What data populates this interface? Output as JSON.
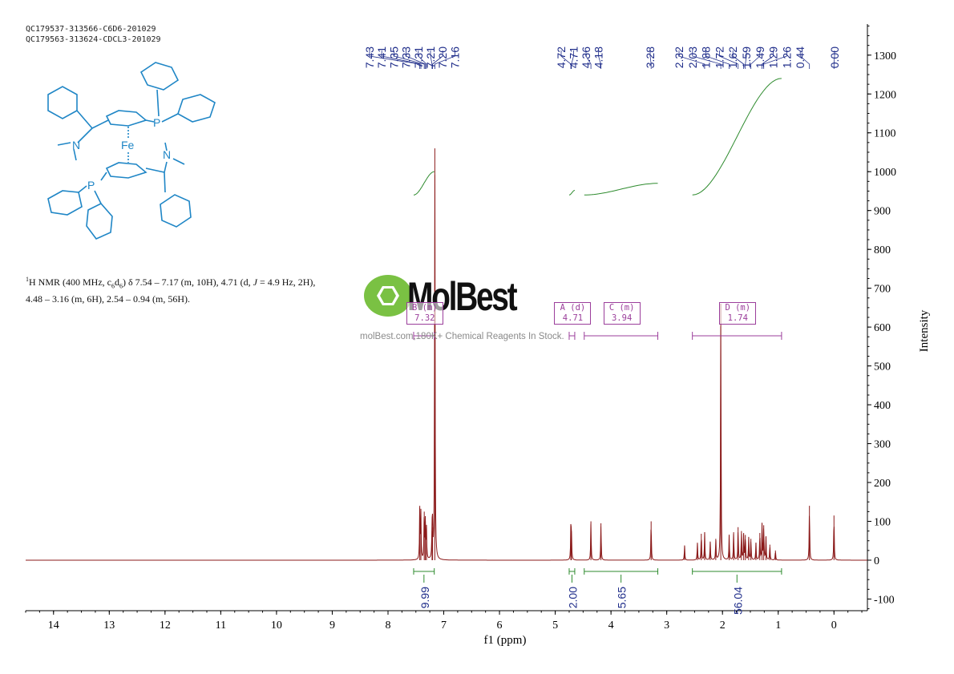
{
  "sample_codes": [
    "QC179537-313566-C6D6-201029",
    "QC179563-313624-CDCL3-201029"
  ],
  "description": {
    "nucleus": "1",
    "nmr": "H NMR (400 MHz, c",
    "solvent_sub_1": "6",
    "solvent_mid": "d",
    "solvent_sub_2": "6",
    "rest_1": ") δ 7.54 – 7.17 (m, 10H), 4.71 (d, ",
    "j": "J",
    "rest_2": " = 4.9 Hz, 2H),",
    "line2": "4.48 – 3.16 (m, 6H), 2.54 – 0.94 (m, 56H)."
  },
  "structure": {
    "labels": {
      "fe": "Fe",
      "p": "P",
      "n": "N"
    }
  },
  "watermark": {
    "name": "MolBest",
    "url": "molBest.com,180K+ Chemical Reagents In Stock."
  },
  "colors": {
    "spectrum": "#8b1a1a",
    "integral": "#2e8b2e",
    "peaks": "#1f2d8a",
    "multiplet": "#9b3e9b",
    "structure": "#1f86c6",
    "logo": "#7ac143"
  },
  "chart_data": {
    "type": "line",
    "xlabel": "f1 (ppm)",
    "ylabel": "Intensity",
    "xlim": [
      14.5,
      -0.6
    ],
    "ylim": [
      -130,
      1380
    ],
    "x_ticks": [
      14,
      13,
      12,
      11,
      10,
      9,
      8,
      7,
      6,
      5,
      4,
      3,
      2,
      1,
      0
    ],
    "y_ticks": [
      -100,
      0,
      100,
      200,
      300,
      400,
      500,
      600,
      700,
      800,
      900,
      1000,
      1100,
      1200,
      1300
    ],
    "peak_labels": [
      "7.43",
      "7.41",
      "7.35",
      "7.33",
      "7.31",
      "7.21",
      "7.20",
      "7.16",
      "4.72",
      "4.71",
      "4.36",
      "4.18",
      "3.28",
      "2.32",
      "2.03",
      "1.88",
      "1.72",
      "1.62",
      "1.59",
      "1.49",
      "1.29",
      "1.26",
      "0.44",
      "0.00"
    ],
    "peaks": [
      {
        "x": 7.43,
        "y": 140
      },
      {
        "x": 7.41,
        "y": 120
      },
      {
        "x": 7.35,
        "y": 125
      },
      {
        "x": 7.33,
        "y": 100
      },
      {
        "x": 7.31,
        "y": 80
      },
      {
        "x": 7.21,
        "y": 75
      },
      {
        "x": 7.2,
        "y": 85
      },
      {
        "x": 7.16,
        "y": 1060
      },
      {
        "x": 4.72,
        "y": 80
      },
      {
        "x": 4.71,
        "y": 75
      },
      {
        "x": 4.36,
        "y": 100
      },
      {
        "x": 4.18,
        "y": 95
      },
      {
        "x": 3.28,
        "y": 100
      },
      {
        "x": 2.68,
        "y": 38
      },
      {
        "x": 2.45,
        "y": 45
      },
      {
        "x": 2.38,
        "y": 68
      },
      {
        "x": 2.32,
        "y": 72
      },
      {
        "x": 2.22,
        "y": 48
      },
      {
        "x": 2.12,
        "y": 55
      },
      {
        "x": 2.03,
        "y": 660
      },
      {
        "x": 1.88,
        "y": 65
      },
      {
        "x": 1.8,
        "y": 72
      },
      {
        "x": 1.72,
        "y": 85
      },
      {
        "x": 1.66,
        "y": 75
      },
      {
        "x": 1.62,
        "y": 70
      },
      {
        "x": 1.59,
        "y": 65
      },
      {
        "x": 1.53,
        "y": 60
      },
      {
        "x": 1.49,
        "y": 55
      },
      {
        "x": 1.4,
        "y": 45
      },
      {
        "x": 1.33,
        "y": 70
      },
      {
        "x": 1.29,
        "y": 95
      },
      {
        "x": 1.26,
        "y": 90
      },
      {
        "x": 1.22,
        "y": 60
      },
      {
        "x": 1.15,
        "y": 40
      },
      {
        "x": 1.05,
        "y": 25
      },
      {
        "x": 0.44,
        "y": 140
      },
      {
        "x": 0.0,
        "y": 115
      }
    ],
    "integrals": [
      {
        "from": 7.54,
        "to": 7.17,
        "value": "9.99",
        "curve_start": 940,
        "curve_end": 1000
      },
      {
        "from": 4.75,
        "to": 4.65,
        "value": "2.00",
        "curve_start": 940,
        "curve_end": 952
      },
      {
        "from": 4.48,
        "to": 3.16,
        "value": "5.65",
        "curve_start": 940,
        "curve_end": 970
      },
      {
        "from": 2.54,
        "to": 0.94,
        "value": "56.04",
        "curve_start": 940,
        "curve_end": 1240
      }
    ],
    "multiplets": [
      {
        "label": "B (m)",
        "shift": "7.32",
        "from": 7.54,
        "to": 7.17
      },
      {
        "label": "A (d)",
        "shift": "4.71",
        "from": 4.75,
        "to": 4.65
      },
      {
        "label": "C (m)",
        "shift": "3.94",
        "from": 4.48,
        "to": 3.16
      },
      {
        "label": "D (m)",
        "shift": "1.74",
        "from": 2.54,
        "to": 0.94
      }
    ]
  }
}
